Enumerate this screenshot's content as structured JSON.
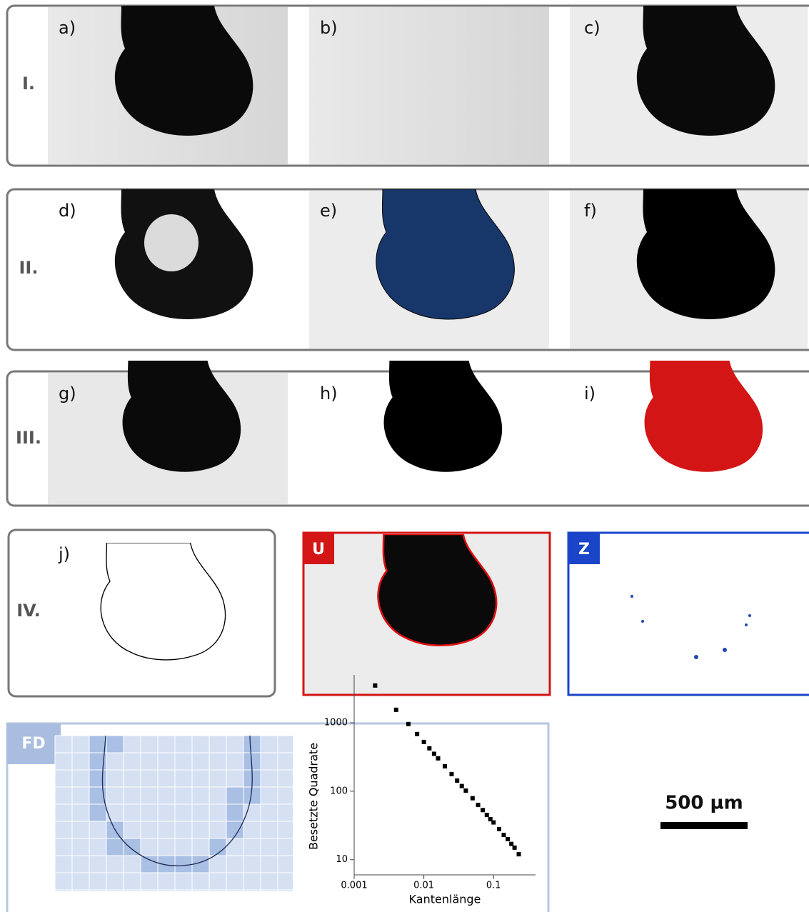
{
  "rows": [
    "I.",
    "II.",
    "III.",
    "IV."
  ],
  "panels": [
    "a)",
    "b)",
    "c)",
    "d)",
    "e)",
    "f)",
    "g)",
    "h)",
    "i)",
    "j)"
  ],
  "badges": {
    "u": "U",
    "z": "Z",
    "fd": "FD"
  },
  "scale_bar": "500 µm",
  "chart_data": {
    "type": "scatter",
    "x_label": "Kantenlänge",
    "y_label": "Besetzte Quadrate",
    "x": [
      0.002,
      0.004,
      0.006,
      0.008,
      0.01,
      0.012,
      0.014,
      0.016,
      0.02,
      0.025,
      0.03,
      0.035,
      0.04,
      0.05,
      0.06,
      0.07,
      0.08,
      0.09,
      0.1,
      0.12,
      0.14,
      0.16,
      0.18,
      0.2,
      0.23
    ],
    "values": [
      3500,
      1547,
      958,
      684,
      524,
      423,
      352,
      302,
      231,
      178,
      143,
      119,
      102,
      79,
      63,
      53,
      45,
      39,
      35,
      28,
      23,
      20,
      17,
      15,
      12
    ],
    "color": "#000000",
    "xlog": true,
    "ylog": true,
    "xlim": [
      0.001,
      0.4
    ],
    "ylim": [
      6,
      5000
    ],
    "xticks": [
      0.001,
      0.01,
      0.1
    ],
    "yticks": [
      10,
      100,
      1000
    ]
  }
}
